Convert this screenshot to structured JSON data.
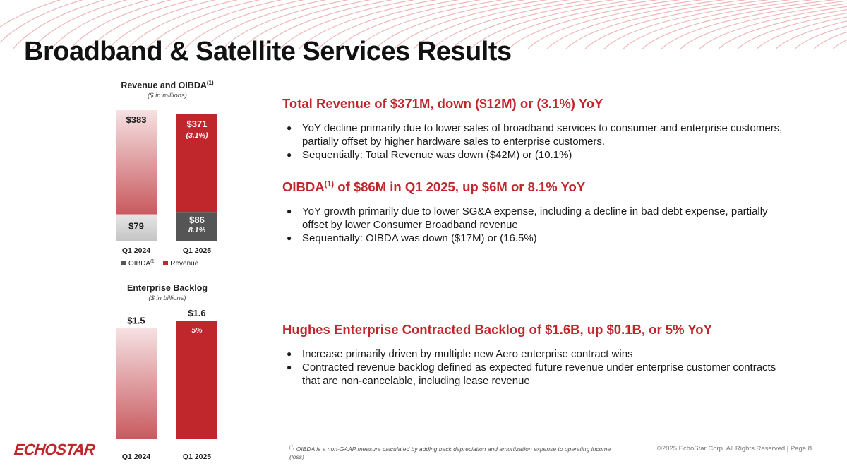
{
  "title": "Broadband & Satellite Services Results",
  "colors": {
    "accent": "#c0272d",
    "revenue": "#c0272d",
    "oibda": "#555555"
  },
  "chart_data": [
    {
      "type": "bar",
      "stacked": true,
      "title": "Revenue and OIBDA",
      "title_sup": "(1)",
      "subtitle": "($ in millions)",
      "categories": [
        "Q1 2024",
        "Q1 2025"
      ],
      "series": [
        {
          "name": "OIBDA",
          "name_sup": "(1)",
          "values": [
            79,
            86
          ],
          "labels": [
            "$79",
            "$86"
          ],
          "sub_labels": [
            "",
            "8.1%"
          ]
        },
        {
          "name": "Revenue",
          "values": [
            383,
            371
          ],
          "labels": [
            "$383",
            "$371"
          ],
          "sub_labels": [
            "",
            "(3.1%)"
          ]
        }
      ],
      "legend": "bottom"
    },
    {
      "type": "bar",
      "title": "Enterprise Backlog",
      "subtitle": "($ in billions)",
      "categories": [
        "Q1 2024",
        "Q1 2025"
      ],
      "values": [
        1.5,
        1.6
      ],
      "labels": [
        "$1.5",
        "$1.6"
      ],
      "sub_labels": [
        "",
        "5%"
      ]
    }
  ],
  "sections": [
    {
      "heading": "Total Revenue of $371M, down ($12M) or (3.1%) YoY",
      "bullets": [
        "YoY decline primarily due to lower sales of broadband services to consumer and enterprise customers, partially offset by higher hardware sales to enterprise customers.",
        "Sequentially: Total Revenue was down ($42M) or (10.1%)"
      ]
    },
    {
      "heading_pre": "OIBDA",
      "heading_sup": "(1)",
      "heading_post": " of $86M in Q1 2025, up $6M or 8.1% YoY",
      "bullets": [
        "YoY growth primarily due to lower SG&A expense, including a decline in bad debt expense, partially offset by lower Consumer Broadband revenue",
        "Sequentially: OIBDA was down ($17M) or (16.5%)"
      ]
    },
    {
      "heading": "Hughes Enterprise Contracted Backlog of $1.6B, up $0.1B, or 5% YoY",
      "bullets": [
        "Increase primarily driven by multiple new Aero enterprise contract wins",
        "Contracted revenue backlog defined as expected future revenue under enterprise customer contracts that are non-cancelable, including lease revenue"
      ]
    }
  ],
  "footer": {
    "logo": "ECHOSTAR",
    "footnote_sup": "(1)",
    "footnote": " OIBDA is a non-GAAP measure calculated by adding back depreciation and amortization expense to operating income (loss)",
    "copyright": "©2025 EchoStar Corp. All Rights Reserved   |   Page 8"
  }
}
